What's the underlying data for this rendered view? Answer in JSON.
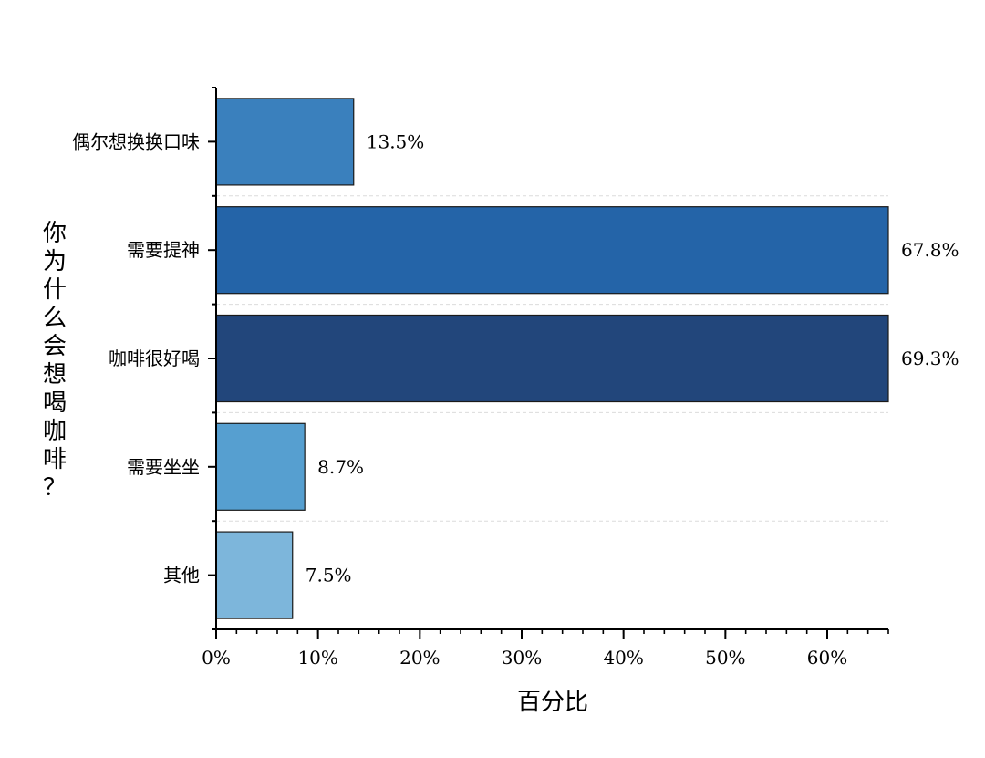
{
  "chart_data": {
    "type": "bar",
    "orientation": "horizontal",
    "title": "",
    "xlabel": "百分比",
    "ylabel": "你为什么会想喝咖啡？",
    "xlim": [
      0,
      66
    ],
    "xticks": [
      0,
      10,
      20,
      30,
      40,
      50,
      60
    ],
    "xtick_labels": [
      "0%",
      "10%",
      "20%",
      "30%",
      "40%",
      "50%",
      "60%"
    ],
    "categories": [
      "偶尔想换换口味",
      "需要提神",
      "咖啡很好喝",
      "需要坐坐",
      "其他"
    ],
    "values": [
      13.5,
      67.8,
      69.3,
      8.7,
      7.5
    ],
    "value_labels": [
      "13.5%",
      "67.8%",
      "69.3%",
      "8.7%",
      "7.5%"
    ],
    "colors": [
      "#3a80bd",
      "#2464a8",
      "#22467b",
      "#569fd0",
      "#7db6db"
    ],
    "grid": "horizontal dashed between categories",
    "legend": "none"
  }
}
